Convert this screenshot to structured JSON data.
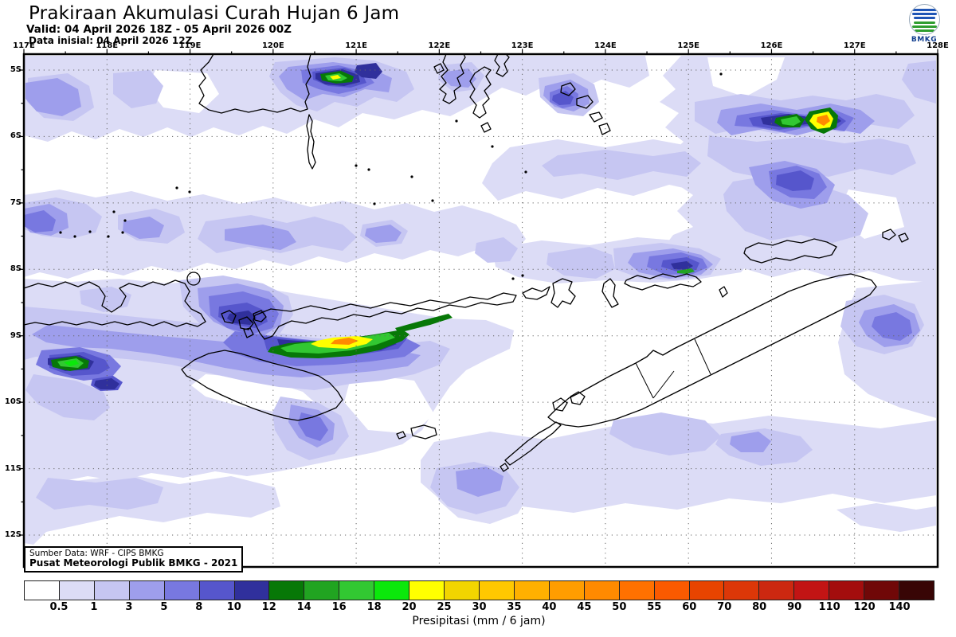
{
  "header": {
    "title": "Prakiraan Akumulasi Curah Hujan 6 Jam",
    "valid": "Valid: 04 April 2026 18Z - 05 April 2026 00Z",
    "init": "Data inisial: 04 April 2026 12Z",
    "logo": "BMKG"
  },
  "map": {
    "lon_labels": [
      "117E",
      "118E",
      "119E",
      "120E",
      "121E",
      "122E",
      "123E",
      "124E",
      "125E",
      "126E",
      "127E",
      "128E"
    ],
    "lat_labels": [
      "5S",
      "6S",
      "7S",
      "8S",
      "9S",
      "10S",
      "11S",
      "12S"
    ]
  },
  "source": {
    "line1": "Sumber Data: WRF - CIPS BMKG",
    "line2": "Pusat Meteorologi Publik BMKG - 2021"
  },
  "colorbar": {
    "caption": "Presipitasi (mm / 6 jam)",
    "tick_labels": [
      "0.5",
      "1",
      "3",
      "5",
      "8",
      "10",
      "12",
      "14",
      "16",
      "18",
      "20",
      "25",
      "30",
      "35",
      "40",
      "45",
      "50",
      "55",
      "60",
      "70",
      "80",
      "90",
      "110",
      "120",
      "140"
    ],
    "cell_colors": [
      "#FFFFFF",
      "#DCDCF6",
      "#C6C6F2",
      "#9E9EEC",
      "#7878E0",
      "#5656CC",
      "#30309C",
      "#077807",
      "#21A421",
      "#32C832",
      "#0BE80B",
      "#FFFF00",
      "#F2D500",
      "#FFC800",
      "#FFB000",
      "#FF9D00",
      "#FF8A00",
      "#FF7100",
      "#FB5A00",
      "#E84400",
      "#DC3708",
      "#CC2810",
      "#C21414",
      "#A30D0D",
      "#700808",
      "#380505"
    ]
  },
  "chart_data": {
    "type": "heatmap",
    "title": "Prakiraan Akumulasi Curah Hujan 6 Jam",
    "units": "mm / 6 jam",
    "lon_range": [
      117,
      128
    ],
    "lat_range": [
      -12.5,
      -4.8
    ],
    "grid": "dotted, 1 degree spacing",
    "levels_mm": [
      0.5,
      1,
      3,
      5,
      8,
      10,
      12,
      14,
      16,
      18,
      20,
      25,
      30,
      35,
      40,
      45,
      50,
      55,
      60,
      70,
      80,
      90,
      110,
      120,
      140
    ],
    "level_colors": [
      "#FFFFFF",
      "#DCDCF6",
      "#C6C6F2",
      "#9E9EEC",
      "#7878E0",
      "#5656CC",
      "#30309C",
      "#077807",
      "#21A421",
      "#32C832",
      "#0BE80B",
      "#FFFF00",
      "#F2D500",
      "#FFC800",
      "#FFB000",
      "#FF9D00",
      "#FF8A00",
      "#FF7100",
      "#FB5A00",
      "#E84400",
      "#DC3708",
      "#CC2810",
      "#C21414",
      "#A30D0D",
      "#700808",
      "#380505"
    ],
    "maxima": [
      {
        "lon": 120.8,
        "lat": -5.3,
        "peak_mm": "20-25",
        "note": "yellow core in green cell near South Sulawesi"
      },
      {
        "lon": 126.6,
        "lat": -5.8,
        "peak_mm": "45-55",
        "note": "orange core, twin cells NE quadrant"
      },
      {
        "lon": 126.2,
        "lat": -5.85,
        "peak_mm": "16-20",
        "note": "green cell west of orange core"
      },
      {
        "lon": 121.0,
        "lat": -9.35,
        "peak_mm": "45-55",
        "note": "elongated band with orange core south of Flores"
      },
      {
        "lon": 117.85,
        "lat": -9.45,
        "peak_mm": "18-20",
        "note": "small green ellipse SW corner"
      },
      {
        "lon": 125.0,
        "lat": -8.25,
        "peak_mm": "14-16",
        "note": "green sliver over dark blue north of Alor"
      }
    ],
    "widespread": "0.5-8 mm lavender/blue shading over most ocean areas, Lesser Sunda Islands, Timor and Banda Sea"
  }
}
